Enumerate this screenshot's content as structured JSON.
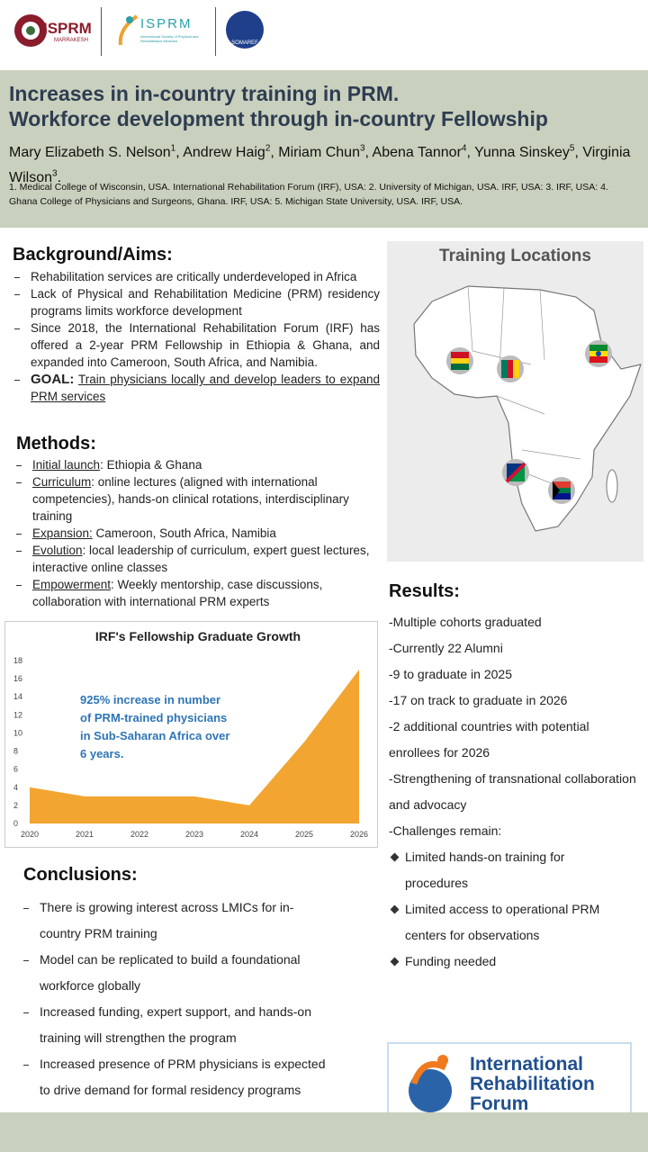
{
  "logos": {
    "left_name": "ISPRM",
    "left_city": "MARRAKESH",
    "middle_name": "ISPRM",
    "middle_caption": "International Society of Physical and Rehabilitation Medicine",
    "right_name": "SOMAREF",
    "irf": [
      "International",
      "Rehabilitation",
      "Forum"
    ]
  },
  "header": {
    "title": [
      "Increases in in-country training in PRM.",
      "Workforce development through in-country Fellowship"
    ],
    "authors": [
      {
        "name": "Mary Elizabeth S. Nelson",
        "sup": "1"
      },
      {
        "name": "Andrew Haig",
        "sup": "2"
      },
      {
        "name": "Miriam Chun",
        "sup": "3"
      },
      {
        "name": "Abena Tannor",
        "sup": "4"
      },
      {
        "name": "Yunna Sinskey",
        "sup": "5"
      },
      {
        "name": "Virginia  Wilson",
        "sup": "3"
      }
    ],
    "affiliations": "1. Medical College of Wisconsin, USA. International Rehabilitation Forum (IRF), USA: 2. University of Michigan, USA. IRF, USA: 3. IRF, USA: 4. Ghana College of Physicians and Surgeons, Ghana. IRF, USA:  5. Michigan State University, USA. IRF, USA."
  },
  "background": {
    "heading": "Background/Aims:",
    "items": [
      {
        "text": "Rehabilitation services are critically underdeveloped in Africa"
      },
      {
        "text": "Lack of Physical and Rehabilitation Medicine (PRM) residency programs limits workforce development"
      },
      {
        "text": "Since 2018, the International Rehabilitation Forum (IRF) has offered a 2-year PRM  Fellowship in Ethiopia & Ghana, and expanded into Cameroon, South Africa, and Namibia."
      },
      {
        "label": "GOAL:",
        "text": "Train physicians locally and develop leaders to expand PRM services"
      }
    ]
  },
  "methods": {
    "heading": "Methods:",
    "items": [
      {
        "label": "Initial launch",
        "text": ": Ethiopia & Ghana"
      },
      {
        "label": "Curriculum",
        "text": ": online lectures (aligned with international competencies), hands-on clinical rotations, interdisciplinary training"
      },
      {
        "label": "Expansion:",
        "text": " Cameroon, South Africa, Namibia"
      },
      {
        "label": "Evolution",
        "text": ": local leadership of curriculum, expert guest lectures, interactive online classes"
      },
      {
        "label": "Empowerment",
        "text": ": Weekly mentorship, case discussions, collaboration with international PRM experts"
      }
    ]
  },
  "map": {
    "title": "Training Locations"
  },
  "chart_data": {
    "type": "area",
    "title": "IRF's Fellowship Graduate Growth",
    "annotation": [
      "925% increase in number",
      "of PRM-trained physicians",
      "in Sub-Saharan Africa over",
      "6 years."
    ],
    "categories": [
      "2020",
      "2021",
      "2022",
      "2023",
      "2024",
      "2025",
      "2026"
    ],
    "values": [
      4,
      3,
      3,
      3,
      2,
      9,
      17
    ],
    "color": "#f2a531",
    "annotation_color": "#2e75b6",
    "ylim": [
      0,
      18
    ],
    "yticks": [
      0,
      2,
      4,
      6,
      8,
      10,
      12,
      14,
      16,
      18
    ],
    "grid": false
  },
  "results": {
    "heading": "Results:",
    "items": [
      "-Multiple cohorts graduated",
      "-Currently 22 Alumni",
      "-9 to graduate in 2025",
      "-17 on track to graduate in 2026",
      "-2 additional countries with potential enrollees for 2026",
      "-Strengthening of transnational collaboration and advocacy",
      "-Challenges remain:"
    ],
    "subitems": [
      "Limited hands-on training for procedures",
      "Limited access to operational PRM centers for observations",
      "Funding needed"
    ]
  },
  "conclusions": {
    "heading": "Conclusions:",
    "items": [
      "There is growing interest across LMICs for in-country PRM training",
      "Model can be replicated to build a foundational workforce globally",
      "Increased funding, expert support, and hands-on training will strengthen the program",
      "Increased presence of PRM physicians is expected to drive demand for formal residency programs"
    ]
  }
}
